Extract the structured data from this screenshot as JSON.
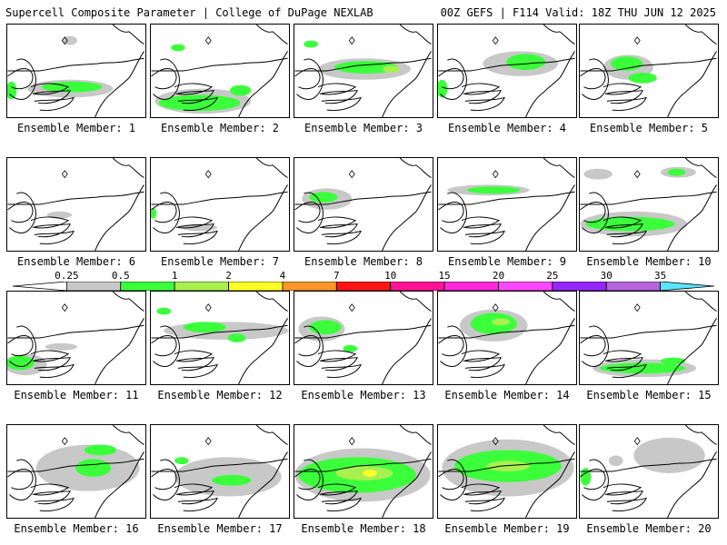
{
  "header": {
    "title_left": "Supercell Composite Parameter | College of DuPage NEXLAB",
    "title_right": "00Z GEFS | F114 Valid: 18Z THU JUN 12 2025"
  },
  "colorbar": {
    "labels": [
      "0.25",
      "0.5",
      "1",
      "2",
      "4",
      "7",
      "10",
      "15",
      "20",
      "25",
      "30",
      "35"
    ],
    "colors": [
      "#ffffff",
      "#c8c8c8",
      "#3cff3c",
      "#a8f050",
      "#ffff28",
      "#ff9628",
      "#ff1414",
      "#ff1496",
      "#ff28dc",
      "#ff46ff",
      "#9628ff",
      "#b464dc",
      "#5ae6ff"
    ]
  },
  "panels": [
    {
      "label": "Ensemble Member: 1"
    },
    {
      "label": "Ensemble Member: 2"
    },
    {
      "label": "Ensemble Member: 3"
    },
    {
      "label": "Ensemble Member: 4"
    },
    {
      "label": "Ensemble Member: 5"
    },
    {
      "label": "Ensemble Member: 6"
    },
    {
      "label": "Ensemble Member: 7"
    },
    {
      "label": "Ensemble Member: 8"
    },
    {
      "label": "Ensemble Member: 9"
    },
    {
      "label": "Ensemble Member: 10"
    },
    {
      "label": "Ensemble Member: 11"
    },
    {
      "label": "Ensemble Member: 12"
    },
    {
      "label": "Ensemble Member: 13"
    },
    {
      "label": "Ensemble Member: 14"
    },
    {
      "label": "Ensemble Member: 15"
    },
    {
      "label": "Ensemble Member: 16"
    },
    {
      "label": "Ensemble Member: 17"
    },
    {
      "label": "Ensemble Member: 18"
    },
    {
      "label": "Ensemble Member: 19"
    },
    {
      "label": "Ensemble Member: 20"
    }
  ]
}
